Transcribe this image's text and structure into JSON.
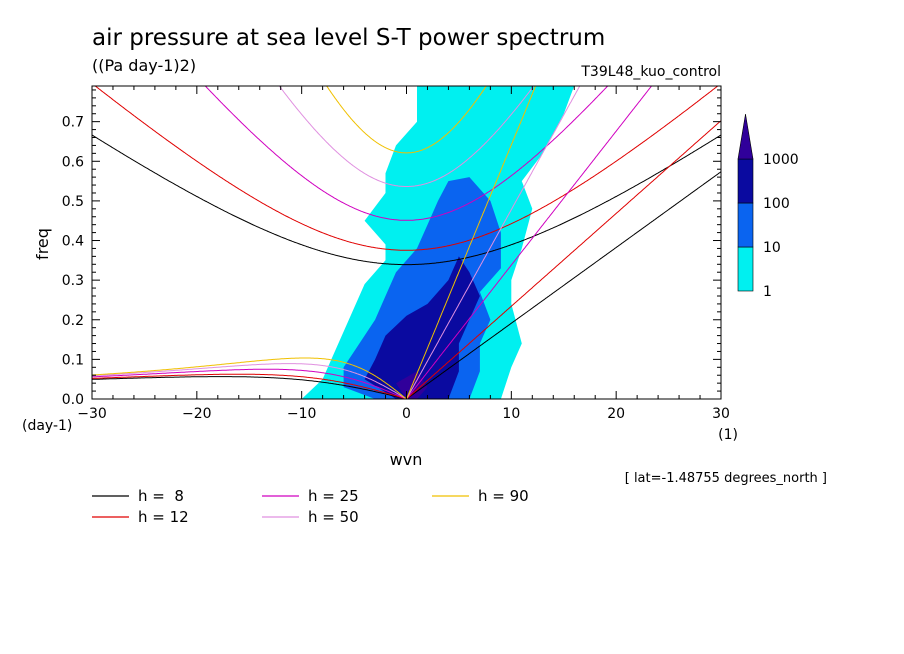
{
  "chart_data": {
    "type": "heatmap",
    "title": "air pressure at sea level S-T power spectrum",
    "units": "((Pa day-1)2)",
    "run_label": "T39L48_kuo_control",
    "xlabel": "wvn",
    "ylabel": "freq",
    "x_unit": "(1)",
    "y_unit": "(day-1)",
    "xlim": [
      -30,
      30
    ],
    "ylim": [
      0,
      0.79
    ],
    "xticks": [
      -30,
      -20,
      -10,
      0,
      10,
      20,
      30
    ],
    "yticks": [
      0.0,
      0.1,
      0.2,
      0.3,
      0.4,
      0.5,
      0.6,
      0.7
    ],
    "ytick_labels": [
      "0.0",
      "0.1",
      "0.2",
      "0.3",
      "0.4",
      "0.5",
      "0.6",
      "0.7"
    ],
    "footnote": "[ lat=-1.48755 degrees_north ]",
    "colorbar": {
      "levels": [
        "1",
        "10",
        "100",
        "1000"
      ],
      "colors": [
        "#00f0f0",
        "#0a64f0",
        "#0a0aa0",
        "#30009a"
      ]
    },
    "power_regions": [
      {
        "level": 1,
        "points": [
          [
            -1,
            0.0
          ],
          [
            -10,
            0.0
          ],
          [
            -8,
            0.05
          ],
          [
            -7,
            0.11
          ],
          [
            -6,
            0.17
          ],
          [
            -5,
            0.23
          ],
          [
            -4,
            0.29
          ],
          [
            -2,
            0.35
          ],
          [
            -2,
            0.39
          ],
          [
            -4,
            0.45
          ],
          [
            -2,
            0.52
          ],
          [
            -2,
            0.57
          ],
          [
            -1,
            0.64
          ],
          [
            1,
            0.7
          ],
          [
            1,
            0.79
          ],
          [
            16,
            0.79
          ],
          [
            15,
            0.72
          ],
          [
            13,
            0.62
          ],
          [
            11,
            0.55
          ],
          [
            12,
            0.48
          ],
          [
            11,
            0.38
          ],
          [
            10,
            0.3
          ],
          [
            10,
            0.24
          ],
          [
            11,
            0.14
          ],
          [
            10,
            0.08
          ],
          [
            9,
            0.0
          ]
        ]
      },
      {
        "level": 10,
        "points": [
          [
            -3,
            0.0
          ],
          [
            -6,
            0.03
          ],
          [
            -6,
            0.08
          ],
          [
            -5,
            0.12
          ],
          [
            -4,
            0.16
          ],
          [
            -3,
            0.2
          ],
          [
            -2,
            0.26
          ],
          [
            -1,
            0.32
          ],
          [
            1,
            0.38
          ],
          [
            2,
            0.44
          ],
          [
            3,
            0.5
          ],
          [
            4,
            0.55
          ],
          [
            6,
            0.56
          ],
          [
            8,
            0.5
          ],
          [
            9,
            0.42
          ],
          [
            9,
            0.33
          ],
          [
            7,
            0.27
          ],
          [
            8,
            0.2
          ],
          [
            7,
            0.14
          ],
          [
            7,
            0.07
          ],
          [
            6,
            0.0
          ]
        ]
      },
      {
        "level": 100,
        "points": [
          [
            -1,
            0.0
          ],
          [
            -4,
            0.05
          ],
          [
            -3,
            0.1
          ],
          [
            -2,
            0.16
          ],
          [
            0,
            0.21
          ],
          [
            2,
            0.24
          ],
          [
            4,
            0.3
          ],
          [
            5,
            0.36
          ],
          [
            6,
            0.32
          ],
          [
            7,
            0.26
          ],
          [
            6,
            0.2
          ],
          [
            5,
            0.14
          ],
          [
            5,
            0.07
          ],
          [
            4,
            0.0
          ]
        ]
      },
      {
        "level": 1000,
        "points": [
          [
            0,
            0.0
          ],
          [
            -1,
            0.04
          ],
          [
            1,
            0.07
          ],
          [
            2,
            0.03
          ],
          [
            1,
            0.0
          ]
        ]
      }
    ],
    "series": [
      {
        "name": "h =  8",
        "color": "#000000"
      },
      {
        "name": "h = 12",
        "color": "#e00000"
      },
      {
        "name": "h = 25",
        "color": "#d000c0"
      },
      {
        "name": "h = 50",
        "color": "#e090e0"
      },
      {
        "name": "h = 90",
        "color": "#f0c000"
      }
    ]
  }
}
